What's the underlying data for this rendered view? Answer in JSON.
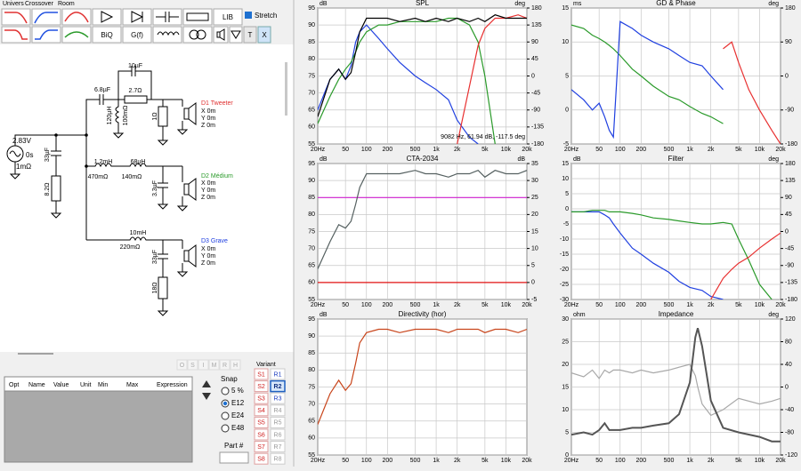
{
  "ui": {
    "tabs": [
      "Univers",
      "Crossover",
      "Room"
    ],
    "toolbar": {
      "biq": "BiQ",
      "gf": "G(f)",
      "lib": "LIB",
      "stretch": "Stretch",
      "t": "T",
      "x": "X"
    },
    "schematic": {
      "source": {
        "voltage": "2.83V",
        "delay": "0s",
        "resistance": "1mΩ"
      },
      "c1": "33µF",
      "r1": "8.2Ω",
      "c2": "6.8µF",
      "c3": "10µF",
      "r2": "2.7Ω",
      "l1": "120µH",
      "l1r": "100mΩ",
      "r3": "1Ω",
      "tweeter": {
        "name": "D1 Tweeter",
        "x": "X 0m",
        "y": "Y 0m",
        "z": "Z 0m"
      },
      "l2": "1.2mH",
      "l2r": "470mΩ",
      "l3": "68µH",
      "l3r": "140mΩ",
      "c4": "3.3µF",
      "medium": {
        "name": "D2 Médium",
        "x": "X 0m",
        "y": "Y 0m",
        "z": "Z 0m"
      },
      "l4": "10mH",
      "l4r": "220mΩ",
      "c5": "33µF",
      "r4": "18Ω",
      "grave": {
        "name": "D3 Grave",
        "x": "X 0m",
        "y": "Y 0m",
        "z": "Z 0m"
      }
    },
    "table": {
      "columns": [
        "Opt",
        "Name",
        "Value",
        "Unit",
        "Min",
        "Max",
        "Expression"
      ]
    },
    "tools": [
      "O",
      "S",
      "I",
      "M",
      "R",
      "H"
    ],
    "snap": {
      "label": "Snap",
      "options": [
        "5 %",
        "E12",
        "E24",
        "E48"
      ],
      "selected": 1
    },
    "part": "Part #",
    "variant": {
      "label": "Variant",
      "s": [
        "S1",
        "S2",
        "S3",
        "S4",
        "S5",
        "S6",
        "S7",
        "S8"
      ],
      "r": [
        "R1",
        "R2",
        "R3",
        "R4",
        "R5",
        "R6",
        "R7",
        "R8"
      ],
      "active": 1
    }
  },
  "chart_data": [
    {
      "type": "line",
      "title": "SPL",
      "y_label": "dB",
      "y2_label": "deg",
      "xscale": "log",
      "grid": true,
      "annotation": "9082 Hz, 61.94 dB, -117.5 deg",
      "x": [
        20,
        30,
        40,
        50,
        60,
        70,
        80,
        100,
        150,
        200,
        300,
        500,
        700,
        1000,
        1500,
        2000,
        3000,
        4000,
        5000,
        7000,
        10000,
        15000,
        20000
      ],
      "xlim": [
        20,
        20000
      ],
      "xticks": [
        {
          "value": 20,
          "label": "20Hz"
        },
        50,
        100,
        200,
        500,
        {
          "value": 1000,
          "label": "1k"
        },
        {
          "value": 2000,
          "label": "2k"
        },
        {
          "value": 5000,
          "label": "5k"
        },
        {
          "value": 10000,
          "label": "10k"
        },
        {
          "value": 20000,
          "label": "20k"
        }
      ],
      "ylim": [
        55,
        95
      ],
      "yticks": [
        55,
        60,
        65,
        70,
        75,
        80,
        85,
        90,
        95
      ],
      "y2lim": [
        -180,
        180
      ],
      "y2ticks": [
        -180,
        -135,
        -90,
        -45,
        0,
        45,
        90,
        135,
        180
      ],
      "series": [
        {
          "color": "#2040e0",
          "values": [
            65,
            74,
            77,
            74,
            78,
            85,
            88,
            90,
            86,
            83,
            79,
            75,
            73,
            71,
            68,
            62,
            57,
            55,
            null,
            null,
            null,
            null,
            null
          ]
        },
        {
          "color": "#2a9a2a",
          "values": [
            61,
            69,
            74,
            77,
            79,
            82,
            85,
            88,
            90,
            90,
            91,
            91,
            91,
            91,
            92,
            92,
            90,
            85,
            75,
            55,
            null,
            null,
            null
          ]
        },
        {
          "color": "#e83030",
          "values": [
            null,
            null,
            null,
            null,
            null,
            null,
            null,
            null,
            null,
            null,
            null,
            null,
            null,
            null,
            null,
            55,
            72,
            84,
            89,
            92,
            92,
            93,
            92
          ]
        },
        {
          "color": "#000000",
          "values": [
            63,
            74,
            77,
            74,
            76,
            82,
            88,
            92,
            92,
            92,
            91,
            92,
            91,
            92,
            91,
            92,
            91,
            92,
            91,
            93,
            92,
            92,
            92
          ]
        }
      ]
    },
    {
      "type": "line",
      "title": "GD & Phase",
      "y_label": "ms",
      "y2_label": "deg",
      "xscale": "log",
      "grid": true,
      "x": [
        20,
        30,
        40,
        50,
        60,
        70,
        80,
        100,
        150,
        200,
        300,
        500,
        700,
        1000,
        1500,
        2000,
        3000,
        4000,
        5000,
        7000,
        10000,
        15000,
        20000
      ],
      "xlim": [
        20,
        20000
      ],
      "xticks": [
        {
          "value": 20,
          "label": "20Hz"
        },
        50,
        100,
        200,
        500,
        {
          "value": 1000,
          "label": "1k"
        },
        {
          "value": 2000,
          "label": "2k"
        },
        {
          "value": 5000,
          "label": "5k"
        },
        {
          "value": 10000,
          "label": "10k"
        },
        {
          "value": 20000,
          "label": "20k"
        }
      ],
      "ylim": [
        -5,
        15
      ],
      "yticks": [
        -5,
        0,
        5,
        10,
        15
      ],
      "y2lim": [
        -180,
        180
      ],
      "y2ticks": [
        -180,
        -90,
        0,
        90,
        180
      ],
      "series": [
        {
          "color": "#2a9a2a",
          "values": [
            12.5,
            12,
            11,
            10.5,
            10,
            9.5,
            9,
            8,
            6,
            5,
            3.5,
            2,
            1.5,
            0.5,
            -0.5,
            -1,
            -2,
            null,
            null,
            null,
            null,
            null,
            null
          ]
        },
        {
          "color": "#2040e0",
          "values": [
            3,
            1.5,
            0,
            1,
            -1,
            -3,
            -4,
            13,
            12,
            11,
            10,
            9,
            8,
            7,
            6.5,
            5,
            3,
            null,
            null,
            null,
            null,
            null,
            null
          ]
        },
        {
          "color": "#e83030",
          "values": [
            null,
            null,
            null,
            null,
            null,
            null,
            null,
            null,
            null,
            null,
            null,
            null,
            null,
            null,
            null,
            null,
            9,
            10,
            7,
            3,
            0,
            -3,
            -5
          ]
        }
      ]
    },
    {
      "type": "line",
      "title": "CTA-2034",
      "y_label": "dB",
      "y2_label": "dB",
      "xscale": "log",
      "grid": true,
      "x": [
        20,
        30,
        40,
        50,
        60,
        70,
        80,
        100,
        150,
        200,
        300,
        500,
        700,
        1000,
        1500,
        2000,
        3000,
        4000,
        5000,
        7000,
        10000,
        15000,
        20000
      ],
      "xlim": [
        20,
        20000
      ],
      "xticks": [
        {
          "value": 20,
          "label": "20Hz"
        },
        50,
        100,
        200,
        500,
        {
          "value": 1000,
          "label": "1k"
        },
        {
          "value": 2000,
          "label": "2k"
        },
        {
          "value": 5000,
          "label": "5k"
        },
        {
          "value": 10000,
          "label": "10k"
        },
        {
          "value": 20000,
          "label": "20k"
        }
      ],
      "ylim": [
        55,
        95
      ],
      "yticks": [
        55,
        60,
        65,
        70,
        75,
        80,
        85,
        90,
        95
      ],
      "y2lim": [
        -5,
        35
      ],
      "y2ticks": [
        -5,
        0,
        5,
        10,
        15,
        20,
        25,
        30,
        35
      ],
      "series": [
        {
          "color": "#d020d0",
          "axis": "y2",
          "values": [
            25,
            25,
            25,
            25,
            25,
            25,
            25,
            25,
            25,
            25,
            25,
            25,
            25,
            25,
            25,
            25,
            25,
            25,
            25,
            25,
            25,
            25,
            25
          ]
        },
        {
          "color": "#e01010",
          "axis": "y2",
          "values": [
            0,
            0,
            0,
            0,
            0,
            0,
            0,
            0,
            0,
            0,
            0,
            0,
            0,
            0,
            0,
            0,
            0,
            0,
            0,
            0,
            0,
            0,
            0
          ]
        },
        {
          "color": "#556060",
          "values": [
            64,
            72,
            77,
            76,
            78,
            83,
            88,
            92,
            92,
            92,
            92,
            93,
            92,
            92,
            91,
            92,
            92,
            93,
            91,
            93,
            92,
            92,
            93
          ]
        }
      ]
    },
    {
      "type": "line",
      "title": "Filter",
      "y_label": "dB",
      "y2_label": "deg",
      "xscale": "log",
      "grid": true,
      "x": [
        20,
        30,
        40,
        50,
        60,
        70,
        80,
        100,
        150,
        200,
        300,
        500,
        700,
        1000,
        1500,
        2000,
        3000,
        4000,
        5000,
        7000,
        10000,
        15000,
        20000
      ],
      "xlim": [
        20,
        20000
      ],
      "xticks": [
        {
          "value": 20,
          "label": "20Hz"
        },
        50,
        100,
        200,
        500,
        {
          "value": 1000,
          "label": "1k"
        },
        {
          "value": 2000,
          "label": "2k"
        },
        {
          "value": 5000,
          "label": "5k"
        },
        {
          "value": 10000,
          "label": "10k"
        },
        {
          "value": 20000,
          "label": "20k"
        }
      ],
      "ylim": [
        -30,
        15
      ],
      "yticks": [
        -30,
        -25,
        -20,
        -15,
        -10,
        -5,
        0,
        5,
        10,
        15
      ],
      "y2lim": [
        -180,
        180
      ],
      "y2ticks": [
        -180,
        -135,
        -90,
        -45,
        0,
        45,
        90,
        135,
        180
      ],
      "series": [
        {
          "color": "#2040e0",
          "values": [
            -1,
            -1,
            -1,
            -1,
            -2,
            -3,
            -5,
            -8,
            -13,
            -15,
            -18,
            -21,
            -24,
            -26,
            -27,
            -29,
            -30,
            null,
            null,
            null,
            null,
            null,
            null
          ]
        },
        {
          "color": "#2a9a2a",
          "values": [
            -1,
            -1,
            -0.5,
            -0.5,
            -0.5,
            -1,
            -1,
            -1,
            -1.5,
            -2,
            -3,
            -3.5,
            -4,
            -4.5,
            -5,
            -5,
            -4.5,
            -5,
            -10,
            -17,
            -25,
            -30,
            null
          ]
        },
        {
          "color": "#e83030",
          "values": [
            null,
            null,
            null,
            null,
            null,
            null,
            null,
            null,
            null,
            null,
            null,
            null,
            null,
            null,
            null,
            -30,
            -23,
            -20,
            -18,
            -16,
            -13,
            -10,
            -8
          ]
        }
      ]
    },
    {
      "type": "line",
      "title": "Directivity (hor)",
      "y_label": "dB",
      "xscale": "log",
      "grid": true,
      "x": [
        20,
        30,
        40,
        50,
        60,
        70,
        80,
        100,
        150,
        200,
        300,
        500,
        700,
        1000,
        1500,
        2000,
        3000,
        4000,
        5000,
        7000,
        10000,
        15000,
        20000
      ],
      "xlim": [
        20,
        20000
      ],
      "xticks": [
        {
          "value": 20,
          "label": "20Hz"
        },
        50,
        100,
        200,
        500,
        {
          "value": 1000,
          "label": "1k"
        },
        {
          "value": 2000,
          "label": "2k"
        },
        {
          "value": 5000,
          "label": "5k"
        },
        {
          "value": 10000,
          "label": "10k"
        },
        {
          "value": 20000,
          "label": "20k"
        }
      ],
      "ylim": [
        55,
        95
      ],
      "yticks": [
        55,
        60,
        65,
        70,
        75,
        80,
        85,
        90,
        95
      ],
      "series": [
        {
          "color": "#c8441a",
          "values": [
            64,
            73,
            77,
            74,
            76,
            82,
            88,
            91,
            92,
            92,
            91,
            92,
            92,
            92,
            91,
            92,
            92,
            92,
            91,
            92,
            92,
            91,
            92
          ]
        }
      ]
    },
    {
      "type": "line",
      "title": "Impedance",
      "y_label": "ohm",
      "y2_label": "deg",
      "xscale": "log",
      "grid": true,
      "x": [
        20,
        30,
        40,
        50,
        60,
        70,
        80,
        100,
        150,
        200,
        300,
        500,
        700,
        1000,
        1200,
        1300,
        1500,
        2000,
        3000,
        5000,
        10000,
        15000,
        20000
      ],
      "xlim": [
        20,
        20000
      ],
      "xticks": [
        {
          "value": 20,
          "label": "20Hz"
        },
        50,
        100,
        200,
        500,
        {
          "value": 1000,
          "label": "1k"
        },
        {
          "value": 2000,
          "label": "2k"
        },
        {
          "value": 5000,
          "label": "5k"
        },
        {
          "value": 10000,
          "label": "10k"
        },
        {
          "value": 20000,
          "label": "20k"
        }
      ],
      "ylim": [
        0,
        30
      ],
      "yticks": [
        0,
        5,
        10,
        15,
        20,
        25,
        30
      ],
      "y2lim": [
        -120,
        120
      ],
      "y2ticks": [
        -120,
        -80,
        -40,
        0,
        40,
        80,
        120
      ],
      "series": [
        {
          "color": "#a8a8a8",
          "axis": "y2",
          "values": [
            25,
            18,
            30,
            15,
            30,
            25,
            30,
            30,
            25,
            30,
            25,
            30,
            35,
            40,
            20,
            0,
            -30,
            -50,
            -40,
            -20,
            -30,
            -25,
            -20
          ]
        },
        {
          "color": "#555555",
          "width": 2,
          "values": [
            4.5,
            5,
            4.5,
            5.5,
            7,
            5.5,
            5.5,
            5.5,
            6,
            6,
            6.5,
            7,
            9,
            16,
            26,
            28,
            24,
            12,
            6,
            5,
            4,
            3,
            3
          ]
        }
      ]
    }
  ]
}
